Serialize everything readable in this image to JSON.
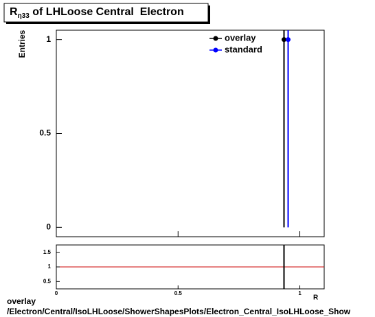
{
  "chart_data": [
    {
      "type": "errorbar",
      "title": "R",
      "title_subscript": "η33",
      "title_rest": " of LHLoose Central  Electron",
      "y_label": "Entries",
      "series": [
        {
          "name": "overlay",
          "color": "#000000",
          "x": [
            0.935
          ],
          "values": [
            1
          ],
          "errors": [
            1
          ]
        },
        {
          "name": "standard",
          "color": "#0000ff",
          "x": [
            0.952
          ],
          "values": [
            1
          ],
          "errors": [
            1
          ]
        }
      ],
      "xlim": [
        0,
        1.1
      ],
      "ylim": [
        -0.05,
        1.05
      ],
      "yticks": [
        0,
        0.5,
        1
      ],
      "legend": "upper right"
    },
    {
      "type": "ratio",
      "x_label": "R",
      "series": [
        {
          "color": "#000000",
          "x": [
            0.935
          ],
          "values": [
            1
          ],
          "errors": [
            1
          ]
        }
      ],
      "reference_line": 1,
      "reference_color": "#cc0000",
      "xlim": [
        0,
        1.1
      ],
      "ylim": [
        0.25,
        1.75
      ],
      "xticks": [
        0,
        0.5,
        1
      ],
      "yticks": [
        0.5,
        1,
        1.5
      ]
    }
  ],
  "footer": {
    "line1": "overlay",
    "line2": "/Electron/Central/IsoLHLoose/ShowerShapesPlots/Electron_Central_IsoLHLoose_Show"
  }
}
